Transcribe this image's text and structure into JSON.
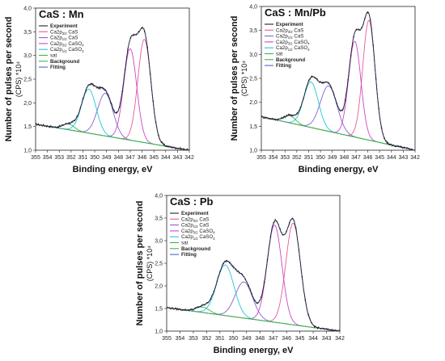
{
  "chart_data": [
    {
      "type": "line",
      "title": "CaS : Mn",
      "xlabel": "Binding energy, eV",
      "ylabel": "Number of pulses per second",
      "ylabel_unit": "(CPS) *10⁴",
      "xlim": [
        355,
        342
      ],
      "ylim": [
        1.0,
        4.0
      ],
      "xticks": [
        "355",
        "354",
        "353",
        "352",
        "351",
        "350",
        "349",
        "348",
        "347",
        "346",
        "345",
        "344",
        "343",
        "342"
      ],
      "yticks": [
        "1,0",
        "1,5",
        "2,0",
        "2,5",
        "3,0",
        "3,5",
        "4,0"
      ],
      "legend": [
        "Experiment",
        "Ca2p3/2 CaS",
        "Ca2p1/2 CaS",
        "Ca2p3/2 CaSO4",
        "Ca2p1/2 CaSO4",
        "sat",
        "Background",
        "Fitting"
      ],
      "background": [
        [
          355,
          1.55
        ],
        [
          342,
          1.0
        ]
      ],
      "peaks": [
        {
          "name": "Ca2p3/2 CaS",
          "color": "#e85a9a",
          "center": 345.8,
          "height": 2.18,
          "sigma": 0.55
        },
        {
          "name": "Ca2p1/2 CaS",
          "color": "#cc44cc",
          "center": 347.0,
          "height": 1.93,
          "sigma": 0.55
        },
        {
          "name": "Ca2p3/2 CaSO4",
          "color": "#8a5ed0",
          "center": 349.1,
          "height": 0.9,
          "sigma": 0.65
        },
        {
          "name": "Ca2p1/2 CaSO4",
          "color": "#22c6d8",
          "center": 350.5,
          "height": 0.93,
          "sigma": 0.62
        },
        {
          "name": "sat",
          "color": "#3cb44b",
          "center": 352.2,
          "height": 0.12,
          "sigma": 0.5
        }
      ]
    },
    {
      "type": "line",
      "title": "CaS : Mn/Pb",
      "xlabel": "Binding energy, eV",
      "ylabel": "Number of pulses per second",
      "ylabel_unit": "(CPS) *10⁴",
      "xlim": [
        355,
        342
      ],
      "ylim": [
        1.0,
        4.0
      ],
      "xticks": [
        "355",
        "354",
        "353",
        "352",
        "351",
        "350",
        "349",
        "348",
        "347",
        "346",
        "345",
        "344",
        "343",
        "342"
      ],
      "yticks": [
        "1,0",
        "1,5",
        "2,0",
        "2,5",
        "3,0",
        "3,5",
        "4,0"
      ],
      "legend": [
        "Experiment",
        "Ca2p3/2 CaS",
        "Ca2p1/2 CaS",
        "Ca2p3/2 CaSO4",
        "Ca2p1/2 CaSO4",
        "sat",
        "Background",
        "Fitting"
      ],
      "background": [
        [
          355,
          1.7
        ],
        [
          342,
          1.0
        ]
      ],
      "peaks": [
        {
          "name": "Ca2p3/2 CaS",
          "color": "#e85a9a",
          "center": 345.9,
          "height": 2.5,
          "sigma": 0.52
        },
        {
          "name": "Ca2p1/2 CaS",
          "color": "#cc44cc",
          "center": 347.1,
          "height": 2.0,
          "sigma": 0.52
        },
        {
          "name": "Ca2p3/2 CaSO4",
          "color": "#8a5ed0",
          "center": 349.3,
          "height": 0.95,
          "sigma": 0.7
        },
        {
          "name": "Ca2p1/2 CaSO4",
          "color": "#22c6d8",
          "center": 350.8,
          "height": 0.95,
          "sigma": 0.62
        },
        {
          "name": "sat",
          "color": "#3cb44b",
          "center": 352.6,
          "height": 0.15,
          "sigma": 0.5
        }
      ]
    },
    {
      "type": "line",
      "title": "CaS : Pb",
      "xlabel": "Binding energy, eV",
      "ylabel": "Number of pulses per second",
      "ylabel_unit": "(CPS) *10⁴",
      "xlim": [
        355,
        342
      ],
      "ylim": [
        1.0,
        4.0
      ],
      "xticks": [
        "355",
        "354",
        "353",
        "352",
        "351",
        "350",
        "349",
        "348",
        "347",
        "346",
        "345",
        "344",
        "343",
        "342"
      ],
      "yticks": [
        "1,0",
        "1,5",
        "2,0",
        "2,5",
        "3,0",
        "3,5",
        "4,0"
      ],
      "legend": [
        "Experiment",
        "Ca2p3/2 CaS",
        "Ca2p1/2 CaS",
        "Ca2p3/2 CaSO4",
        "Ca2p1/2 CaSO4",
        "sat",
        "Background",
        "Fitting"
      ],
      "background": [
        [
          355,
          1.52
        ],
        [
          342,
          1.0
        ]
      ],
      "peaks": [
        {
          "name": "Ca2p3/2 CaS",
          "color": "#e85a9a",
          "center": 345.5,
          "height": 2.25,
          "sigma": 0.55
        },
        {
          "name": "Ca2p1/2 CaS",
          "color": "#cc44cc",
          "center": 346.9,
          "height": 2.15,
          "sigma": 0.55
        },
        {
          "name": "Ca2p3/2 CaSO4",
          "color": "#8a5ed0",
          "center": 349.2,
          "height": 0.8,
          "sigma": 0.65
        },
        {
          "name": "Ca2p1/2 CaSO4",
          "color": "#22c6d8",
          "center": 350.6,
          "height": 1.12,
          "sigma": 0.65
        },
        {
          "name": "sat",
          "color": "#3cb44b",
          "center": 352.3,
          "height": 0.12,
          "sigma": 0.5
        }
      ]
    }
  ]
}
